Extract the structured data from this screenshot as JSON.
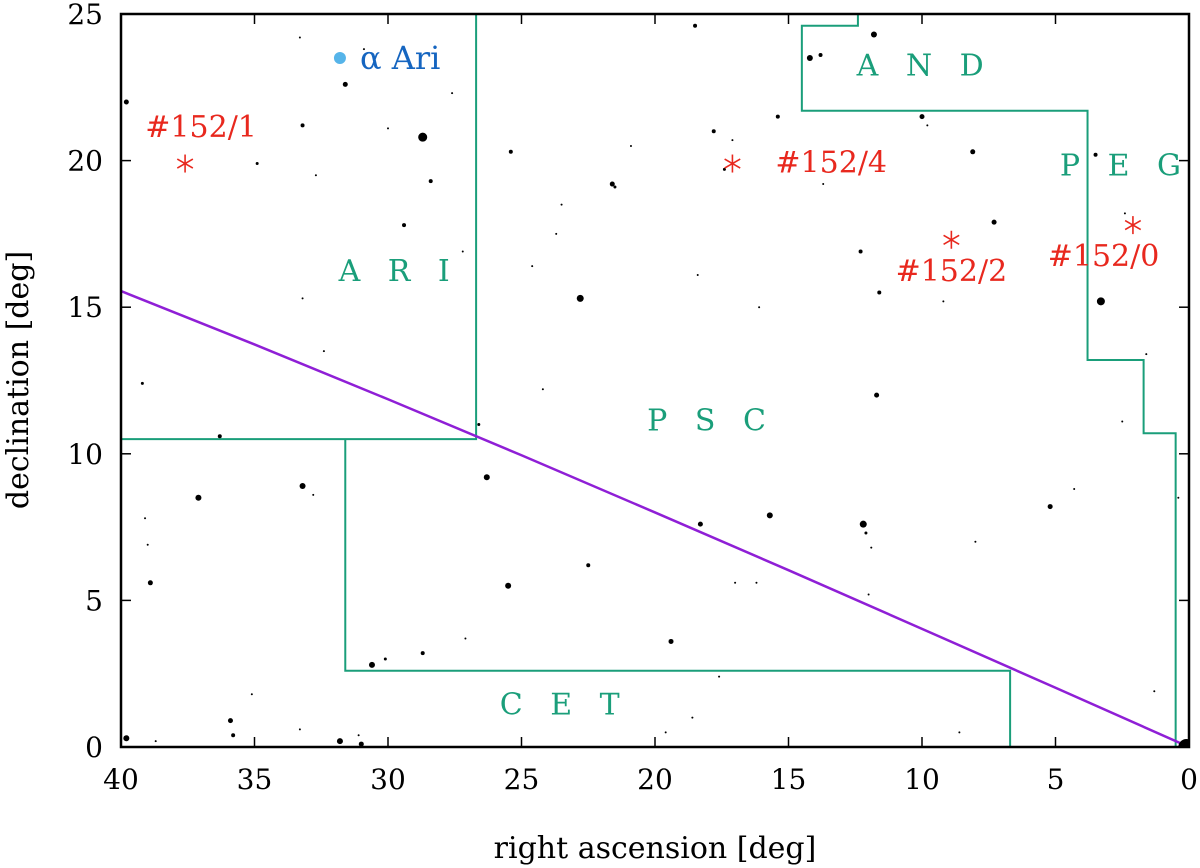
{
  "chart_data": {
    "type": "scatter",
    "xlabel": "right ascension [deg]",
    "ylabel": "declination [deg]",
    "xlim": [
      40,
      0
    ],
    "ylim": [
      0,
      25
    ],
    "x_reversed": true,
    "xticks": [
      40,
      35,
      30,
      25,
      20,
      15,
      10,
      5,
      0
    ],
    "yticks": [
      0,
      5,
      10,
      15,
      20,
      25
    ],
    "colors": {
      "stars": "#000000",
      "boundaries": "#1a9e7a",
      "constellation_labels": "#1a9e7a",
      "ecliptic": "#8f1fd6",
      "targets": "#e8281e",
      "reference_star": "#56b4e9",
      "reference_label": "#1565c0"
    },
    "constellation_boundaries": [
      [
        [
          40,
          10.5
        ],
        [
          26.7,
          10.5
        ],
        [
          26.7,
          25
        ]
      ],
      [
        [
          31.6,
          10.5
        ],
        [
          31.6,
          2.6
        ],
        [
          6.7,
          2.6
        ],
        [
          6.7,
          0
        ]
      ],
      [
        [
          12.4,
          25
        ],
        [
          12.4,
          24.6
        ],
        [
          14.5,
          24.6
        ],
        [
          14.5,
          21.7
        ],
        [
          3.8,
          21.7
        ],
        [
          3.8,
          13.2
        ],
        [
          1.7,
          13.2
        ],
        [
          1.7,
          10.7
        ],
        [
          0.5,
          10.7
        ],
        [
          0.5,
          0
        ]
      ]
    ],
    "ecliptic": {
      "label": "",
      "points": [
        [
          40,
          15.55
        ],
        [
          35,
          13.73
        ],
        [
          30,
          11.86
        ],
        [
          25,
          9.95
        ],
        [
          20,
          8.0
        ],
        [
          15,
          6.03
        ],
        [
          10,
          4.03
        ],
        [
          5,
          2.02
        ],
        [
          0,
          0
        ]
      ]
    },
    "constellation_labels": [
      {
        "text": "A R I",
        "ra": 29.6,
        "dec": 15.9
      },
      {
        "text": "P S C",
        "ra": 17.9,
        "dec": 10.8
      },
      {
        "text": "A N D",
        "ra": 9.9,
        "dec": 22.9
      },
      {
        "text": "P E G",
        "ra": 2.4,
        "dec": 19.5
      },
      {
        "text": "C E T",
        "ra": 23.4,
        "dec": 1.1
      }
    ],
    "targets": [
      {
        "label": "#152/1",
        "ra": 37.6,
        "dec": 19.9,
        "label_ra": 37.0,
        "label_dec": 20.8
      },
      {
        "label": "#152/4",
        "ra": 17.1,
        "dec": 19.9,
        "label_ra": 13.4,
        "label_dec": 19.6
      },
      {
        "label": "#152/2",
        "ra": 8.9,
        "dec": 17.3,
        "label_ra": 8.9,
        "label_dec": 15.9
      },
      {
        "label": "#152/0",
        "ra": 2.1,
        "dec": 17.8,
        "label_ra": 3.2,
        "label_dec": 16.4
      }
    ],
    "reference_star": {
      "label": "α Ari",
      "ra": 31.8,
      "dec": 23.5
    },
    "stars": [
      [
        39.8,
        0.3,
        3
      ],
      [
        38.7,
        0.2,
        1
      ],
      [
        35.9,
        0.9,
        2.5
      ],
      [
        35.8,
        0.4,
        2
      ],
      [
        35.1,
        1.8,
        1
      ],
      [
        33.3,
        0.6,
        1
      ],
      [
        31.8,
        0.2,
        3
      ],
      [
        31.1,
        0.4,
        1
      ],
      [
        31.0,
        0.1,
        2.5
      ],
      [
        30.6,
        2.8,
        3
      ],
      [
        30.1,
        3.0,
        1.5
      ],
      [
        28.7,
        3.2,
        2
      ],
      [
        27.1,
        3.7,
        1
      ],
      [
        39.1,
        7.8,
        1
      ],
      [
        39.0,
        6.9,
        1
      ],
      [
        38.9,
        5.6,
        2.5
      ],
      [
        37.1,
        8.5,
        3
      ],
      [
        33.2,
        8.9,
        3
      ],
      [
        32.8,
        8.6,
        1
      ],
      [
        39.2,
        12.4,
        1.5
      ],
      [
        39.8,
        22.0,
        2.5
      ],
      [
        36.3,
        10.6,
        2
      ],
      [
        34.9,
        19.9,
        1.5
      ],
      [
        33.3,
        24.2,
        1
      ],
      [
        33.2,
        21.2,
        2
      ],
      [
        33.2,
        15.3,
        1
      ],
      [
        32.7,
        19.5,
        1
      ],
      [
        32.4,
        13.5,
        1
      ],
      [
        31.6,
        22.6,
        2.5
      ],
      [
        30.9,
        23.8,
        1
      ],
      [
        30.0,
        21.1,
        1
      ],
      [
        29.4,
        17.8,
        2
      ],
      [
        28.7,
        20.8,
        4.5
      ],
      [
        28.4,
        19.3,
        2
      ],
      [
        27.6,
        22.3,
        1
      ],
      [
        27.2,
        16.9,
        1
      ],
      [
        26.6,
        11.0,
        1.5
      ],
      [
        26.3,
        9.2,
        3
      ],
      [
        25.5,
        5.5,
        3
      ],
      [
        25.4,
        20.3,
        2
      ],
      [
        24.6,
        16.4,
        1
      ],
      [
        24.2,
        12.2,
        1
      ],
      [
        23.7,
        17.5,
        1
      ],
      [
        23.5,
        18.5,
        1
      ],
      [
        22.8,
        15.3,
        3.5
      ],
      [
        22.5,
        6.2,
        2
      ],
      [
        21.6,
        19.2,
        2.5
      ],
      [
        21.5,
        19.1,
        1.5
      ],
      [
        20.9,
        20.5,
        1
      ],
      [
        19.6,
        0.5,
        1
      ],
      [
        19.4,
        3.6,
        2.5
      ],
      [
        18.6,
        1.0,
        1
      ],
      [
        18.5,
        24.6,
        2
      ],
      [
        18.4,
        16.1,
        1
      ],
      [
        18.3,
        7.6,
        2.5
      ],
      [
        17.8,
        21.0,
        2
      ],
      [
        17.6,
        2.4,
        1
      ],
      [
        17.4,
        19.7,
        1.5
      ],
      [
        17.1,
        20.7,
        1
      ],
      [
        17.0,
        5.6,
        1
      ],
      [
        16.2,
        5.6,
        1
      ],
      [
        16.1,
        15.0,
        1
      ],
      [
        15.7,
        7.9,
        3
      ],
      [
        15.4,
        21.5,
        2
      ],
      [
        14.2,
        23.5,
        3
      ],
      [
        13.8,
        23.6,
        2
      ],
      [
        13.7,
        19.2,
        1
      ],
      [
        12.3,
        16.9,
        2
      ],
      [
        12.2,
        7.6,
        3.5
      ],
      [
        12.1,
        7.3,
        1.5
      ],
      [
        12.0,
        5.2,
        1
      ],
      [
        11.9,
        6.8,
        1
      ],
      [
        11.8,
        24.3,
        3
      ],
      [
        11.7,
        12.0,
        2.5
      ],
      [
        11.6,
        15.5,
        2
      ],
      [
        10.0,
        21.5,
        2.5
      ],
      [
        9.8,
        21.2,
        1
      ],
      [
        9.2,
        15.2,
        1
      ],
      [
        8.6,
        0.5,
        1
      ],
      [
        8.1,
        20.3,
        2.5
      ],
      [
        8.0,
        7.0,
        1
      ],
      [
        7.3,
        17.9,
        2.5
      ],
      [
        5.2,
        8.2,
        2.5
      ],
      [
        4.3,
        8.8,
        1
      ],
      [
        3.5,
        20.2,
        2
      ],
      [
        3.3,
        15.2,
        4
      ],
      [
        2.5,
        11.1,
        1
      ],
      [
        2.4,
        18.2,
        1
      ],
      [
        1.6,
        13.4,
        1
      ],
      [
        1.3,
        1.9,
        1
      ],
      [
        0.4,
        8.5,
        1
      ],
      [
        0.1,
        0.0,
        8
      ]
    ]
  }
}
